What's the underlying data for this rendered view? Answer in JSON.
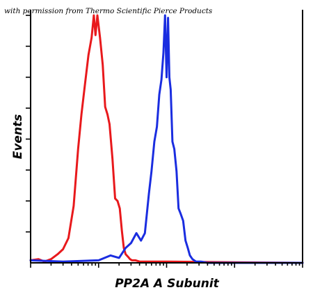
{
  "credit": "with permission from Thermo Scientific Pierce Products",
  "chart_data": {
    "type": "line",
    "xlabel": "PP2A A Subunit",
    "ylabel": "Events",
    "x_scale": "log",
    "xlim": [
      1,
      10000
    ],
    "ylim": [
      0,
      100
    ],
    "grid": false,
    "series": [
      {
        "color": "#e8191c",
        "x": [
          1.0,
          1.3,
          1.6,
          2.0,
          2.5,
          3.0,
          3.6,
          4.3,
          5.0,
          5.6,
          6.3,
          7.1,
          7.9,
          8.5,
          9.0,
          9.6,
          10.5,
          11.5,
          12.5,
          13.5,
          14.5,
          16.0,
          17.5,
          19.0,
          20.5,
          22.0,
          23.5,
          25.0,
          27.0,
          29.0,
          31.0,
          35.0,
          40.0,
          50.0,
          100.0,
          1000.0,
          10000.0
        ],
        "y": [
          1.0,
          1.5,
          0.5,
          1.5,
          3.5,
          5.5,
          10.0,
          23.0,
          46.0,
          60.0,
          72.0,
          84.0,
          91.0,
          100.0,
          92.0,
          100.0,
          91.0,
          80.0,
          63.0,
          60.0,
          56.0,
          42.0,
          26.0,
          25.0,
          22.0,
          13.0,
          6.0,
          3.5,
          2.5,
          1.5,
          1.0,
          1.0,
          0.5,
          0.5,
          0.5,
          0.2,
          0.0
        ]
      },
      {
        "color": "#1a2de0",
        "x": [
          1.0,
          3.0,
          10.0,
          15.0,
          20.0,
          25.0,
          30.0,
          36.0,
          42.0,
          48.0,
          55.0,
          60.0,
          66.0,
          72.0,
          78.0,
          84.0,
          90.0,
          95.0,
          100.0,
          105.0,
          110.0,
          115.0,
          122.0,
          130.0,
          140.0,
          150.0,
          160.0,
          175.0,
          190.0,
          205.0,
          220.0,
          240.0,
          270.0,
          320.0,
          400.0,
          1000.0,
          10000.0
        ],
        "y": [
          1.0,
          0.5,
          1.0,
          3.0,
          2.0,
          6.0,
          8.0,
          12.0,
          9.0,
          12.0,
          28.0,
          37.0,
          49.0,
          55.0,
          68.0,
          74.0,
          85.0,
          100.0,
          75.0,
          99.0,
          75.0,
          70.0,
          49.0,
          46.0,
          37.0,
          22.0,
          20.0,
          17.0,
          9.0,
          6.0,
          3.0,
          1.5,
          0.5,
          0.5,
          0.0,
          0.0,
          0.0
        ]
      }
    ]
  }
}
